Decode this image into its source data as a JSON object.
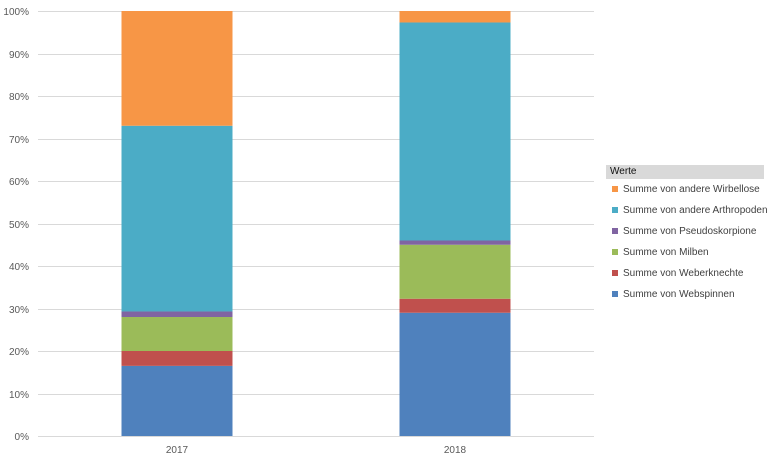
{
  "chart_data": {
    "type": "bar",
    "stacked": true,
    "percent": true,
    "categories": [
      "2017",
      "2018"
    ],
    "y_ticks": [
      "0%",
      "10%",
      "20%",
      "30%",
      "40%",
      "50%",
      "60%",
      "70%",
      "80%",
      "90%",
      "100%"
    ],
    "ylim": [
      0,
      100
    ],
    "grid": true,
    "legend_placement": "right",
    "legend_title": "Werte",
    "series": [
      {
        "name": "Summe von Webspinnen",
        "color": "#4f81bd",
        "values": [
          16.5,
          29
        ]
      },
      {
        "name": "Summe von Weberknechte",
        "color": "#c0504d",
        "values": [
          3.5,
          3.3
        ]
      },
      {
        "name": "Summe von Milben",
        "color": "#9bbb59",
        "values": [
          8,
          12.7
        ]
      },
      {
        "name": "Summe von Pseudoskorpione",
        "color": "#8064a2",
        "values": [
          1.3,
          1
        ]
      },
      {
        "name": "Summe von andere Arthropoden",
        "color": "#4bacc6",
        "values": [
          43.7,
          51.3
        ]
      },
      {
        "name": "Summe von andere Wirbellose",
        "color": "#f79646",
        "values": [
          27,
          2.7
        ]
      }
    ]
  }
}
